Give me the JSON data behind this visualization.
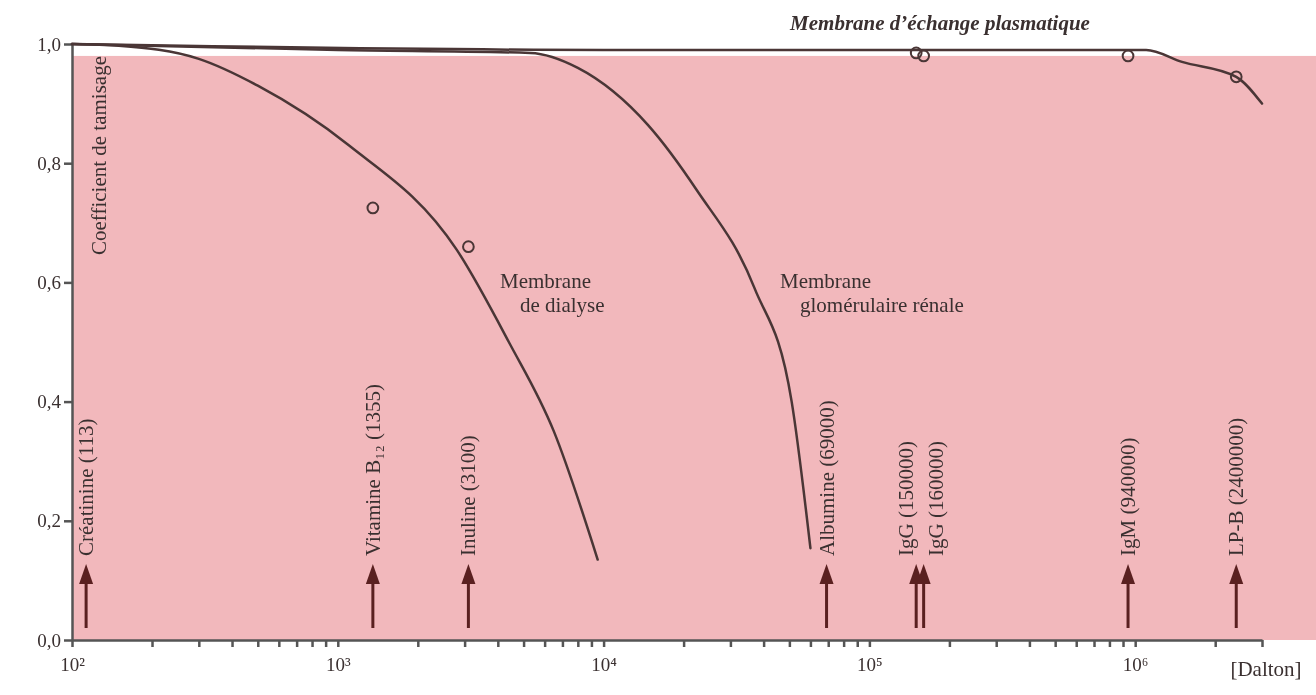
{
  "chart_data": {
    "type": "line",
    "ylabel": "Coefficient de tamisage",
    "xlabel": "[Dalton]",
    "log": "x",
    "grid": false,
    "xlim": [
      100,
      3000000
    ],
    "xticks": [
      {
        "value": 100,
        "label": "10²"
      },
      {
        "value": 200,
        "label": null
      },
      {
        "value": 300,
        "label": null
      },
      {
        "value": 400,
        "label": null
      },
      {
        "value": 500,
        "label": null
      },
      {
        "value": 600,
        "label": null
      },
      {
        "value": 700,
        "label": null
      },
      {
        "value": 800,
        "label": null
      },
      {
        "value": 900,
        "label": null
      },
      {
        "value": 1000,
        "label": "10³"
      },
      {
        "value": 2000,
        "label": null
      },
      {
        "value": 3000,
        "label": null
      },
      {
        "value": 4000,
        "label": null
      },
      {
        "value": 5000,
        "label": null
      },
      {
        "value": 6000,
        "label": null
      },
      {
        "value": 7000,
        "label": null
      },
      {
        "value": 8000,
        "label": null
      },
      {
        "value": 9000,
        "label": null
      },
      {
        "value": 10000,
        "label": "10⁴"
      },
      {
        "value": 20000,
        "label": null
      },
      {
        "value": 30000,
        "label": null
      },
      {
        "value": 40000,
        "label": null
      },
      {
        "value": 50000,
        "label": null
      },
      {
        "value": 60000,
        "label": null
      },
      {
        "value": 70000,
        "label": null
      },
      {
        "value": 80000,
        "label": null
      },
      {
        "value": 90000,
        "label": null
      },
      {
        "value": 100000,
        "label": "10⁵"
      },
      {
        "value": 200000,
        "label": null
      },
      {
        "value": 300000,
        "label": null
      },
      {
        "value": 400000,
        "label": null
      },
      {
        "value": 500000,
        "label": null
      },
      {
        "value": 600000,
        "label": null
      },
      {
        "value": 700000,
        "label": null
      },
      {
        "value": 800000,
        "label": null
      },
      {
        "value": 900000,
        "label": null
      },
      {
        "value": 1000000,
        "label": "10⁶"
      },
      {
        "value": 2000000,
        "label": null
      },
      {
        "value": 3000000,
        "label": null
      }
    ],
    "ylim": [
      0,
      1
    ],
    "yticks": [
      {
        "value": 0,
        "label": "0,0"
      },
      {
        "value": 0.2,
        "label": "0,2"
      },
      {
        "value": 0.4,
        "label": "0,4"
      },
      {
        "value": 0.6,
        "label": "0,6"
      },
      {
        "value": 0.8,
        "label": "0,8"
      },
      {
        "value": 1,
        "label": "1,0"
      }
    ],
    "series": [
      {
        "name": "Membrane de dialyse",
        "type": "line",
        "color": "#4a3636",
        "marker": "none",
        "line_style": "solid",
        "x": [
          100,
          150,
          300,
          500,
          1100,
          2800,
          4400,
          6500,
          9500
        ],
        "values": [
          1.0,
          0.997,
          0.975,
          0.93,
          0.83,
          0.655,
          0.5,
          0.35,
          0.135
        ]
      },
      {
        "name": "Membrane glomérulaire rénale",
        "type": "line",
        "color": "#4a3636",
        "marker": "none",
        "line_style": "solid",
        "x": [
          100,
          1000,
          5300,
          8000,
          14700,
          22400,
          37000,
          51000,
          60000
        ],
        "values": [
          1.0,
          0.99,
          0.985,
          0.96,
          0.864,
          0.755,
          0.59,
          0.4,
          0.154
        ]
      },
      {
        "name": "Membrane d’échange plasmatique",
        "type": "line",
        "color": "#4a3636",
        "marker": "none",
        "line_style": "solid",
        "x": [
          100,
          10000,
          100000,
          1100000,
          1500000,
          2400000,
          3000000
        ],
        "values": [
          1.0,
          0.99,
          0.99,
          0.99,
          0.97,
          0.945,
          0.9
        ]
      },
      {
        "type": "scatter",
        "color": "#4a3636",
        "marker": "circle",
        "x": [
          1355,
          3100,
          150000,
          160000,
          940000,
          2400000
        ],
        "values": [
          0.725,
          0.66,
          0.985,
          0.98,
          0.98,
          0.945
        ]
      }
    ],
    "ref_lines": [
      {
        "axis": "x",
        "value": 113,
        "label": "Créatinine (113)"
      },
      {
        "axis": "x",
        "value": 1355,
        "label": "Vitamine B₁₂ (1355)"
      },
      {
        "axis": "x",
        "value": 3100,
        "label": "Inuline (3100)"
      },
      {
        "axis": "x",
        "value": 69000,
        "label": "Albumine (69000)"
      },
      {
        "axis": "x",
        "value": 150000,
        "label": "IgG (150000)"
      },
      {
        "axis": "x",
        "value": 160000,
        "label": "IgG (160000)"
      },
      {
        "axis": "x",
        "value": 940000,
        "label": "IgM (940000)"
      },
      {
        "axis": "x",
        "value": 2400000,
        "label": "LP-B (2400000)"
      }
    ]
  }
}
